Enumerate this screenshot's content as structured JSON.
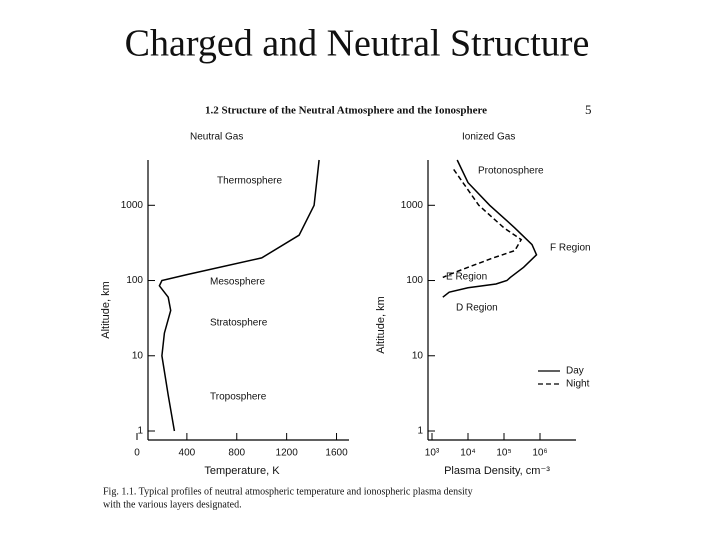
{
  "slide_title": "Charged and Neutral Structure",
  "figure": {
    "header": "1.2 Structure of the Neutral Atmosphere and the Ionosphere",
    "page": "5",
    "caption": [
      "Fig. 1.1. Typical profiles of neutral atmospheric temperature and ionospheric plasma density",
      "with the various layers designated."
    ]
  },
  "chart_data": [
    {
      "type": "line",
      "title": "Neutral Gas",
      "x_label": "Temperature, K",
      "y_label": "Altitude, km",
      "xscale": "linear",
      "yscale": "log",
      "xlim": [
        0,
        1700
      ],
      "ylim": [
        1,
        4000
      ],
      "xticks": [
        0,
        400,
        800,
        1200,
        1600
      ],
      "yticks": [
        1,
        10,
        100,
        1000
      ],
      "annotations": [
        "Thermosphere",
        "Mesosphere",
        "Stratosphere",
        "Troposphere"
      ],
      "series": [
        {
          "color": "#000000",
          "dash": "solid",
          "x": [
            300,
            250,
            200,
            220,
            270,
            250,
            180,
            200,
            400,
            1000,
            1300,
            1420,
            1460
          ],
          "y": [
            1,
            3,
            10,
            20,
            40,
            60,
            85,
            100,
            120,
            200,
            400,
            1000,
            4000
          ]
        }
      ]
    },
    {
      "type": "line",
      "title": "Ionized Gas",
      "x_label": "Plasma Density, cm⁻³",
      "y_label": "Altitude, km",
      "xscale": "log",
      "yscale": "log",
      "xlim": [
        1000,
        10000000
      ],
      "ylim": [
        1,
        4000
      ],
      "xticks": [
        {
          "value": 1000,
          "label": "10³"
        },
        {
          "value": 10000,
          "label": "10⁴"
        },
        {
          "value": 100000,
          "label": "10⁵"
        },
        {
          "value": 1000000,
          "label": "10⁶"
        }
      ],
      "yticks": [
        1,
        10,
        100,
        1000
      ],
      "annotations": [
        "Protonosphere",
        "F Region",
        "E Region",
        "D Region"
      ],
      "legend": "lower right",
      "series": [
        {
          "name": "Day",
          "color": "#000000",
          "dash": "solid",
          "x": [
            5000,
            10000,
            40000,
            200000,
            600000,
            800000,
            350000,
            150000,
            120000,
            60000,
            10000,
            3000,
            2000
          ],
          "y": [
            4000,
            2000,
            1000,
            500,
            300,
            220,
            150,
            110,
            100,
            90,
            80,
            70,
            60
          ]
        },
        {
          "name": "Night",
          "color": "#000000",
          "dash": "dashed",
          "x": [
            4000,
            20000,
            100000,
            300000,
            200000,
            50000,
            10000,
            3000,
            2000
          ],
          "y": [
            3000,
            1000,
            500,
            350,
            250,
            200,
            150,
            120,
            110
          ]
        }
      ]
    }
  ]
}
